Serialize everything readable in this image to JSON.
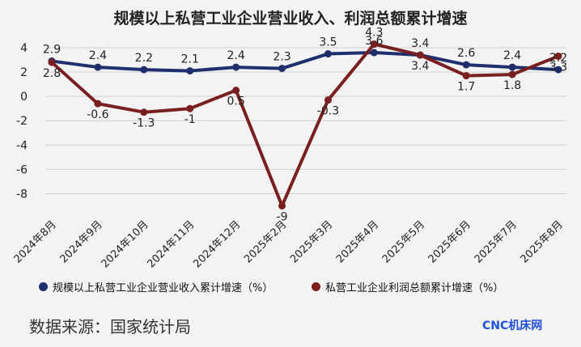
{
  "title": "规模以上私营工业企业营业收入、利润总额累计增速",
  "source": "数据来源：国家统计局",
  "watermark": "CNC机床网",
  "chart_data": {
    "type": "line",
    "categories": [
      "2024年8月",
      "2024年9月",
      "2024年10月",
      "2024年11月",
      "2024年12月",
      "2025年2月",
      "2025年3月",
      "2025年4月",
      "2025年5月",
      "2025年6月",
      "2025年7月",
      "2025年8月"
    ],
    "series": [
      {
        "name": "规模以上私营工业企业营业收入累计增速（%）",
        "color": "#1f2f6e",
        "values": [
          2.9,
          2.4,
          2.2,
          2.1,
          2.4,
          2.3,
          3.5,
          3.6,
          3.4,
          2.6,
          2.4,
          2.2
        ]
      },
      {
        "name": "私营工业企业利润总额累计增速（%）",
        "color": "#7a1f1f",
        "values": [
          2.8,
          -0.6,
          -1.3,
          -1,
          0.5,
          -9,
          -0.3,
          4.3,
          3.4,
          1.7,
          1.8,
          3.3
        ]
      }
    ],
    "yticks": [
      4,
      2,
      0,
      -2,
      -4,
      -6,
      -8
    ],
    "ylim": [
      -9.5,
      4.6
    ],
    "grid": true,
    "legend_position": "bottom"
  }
}
